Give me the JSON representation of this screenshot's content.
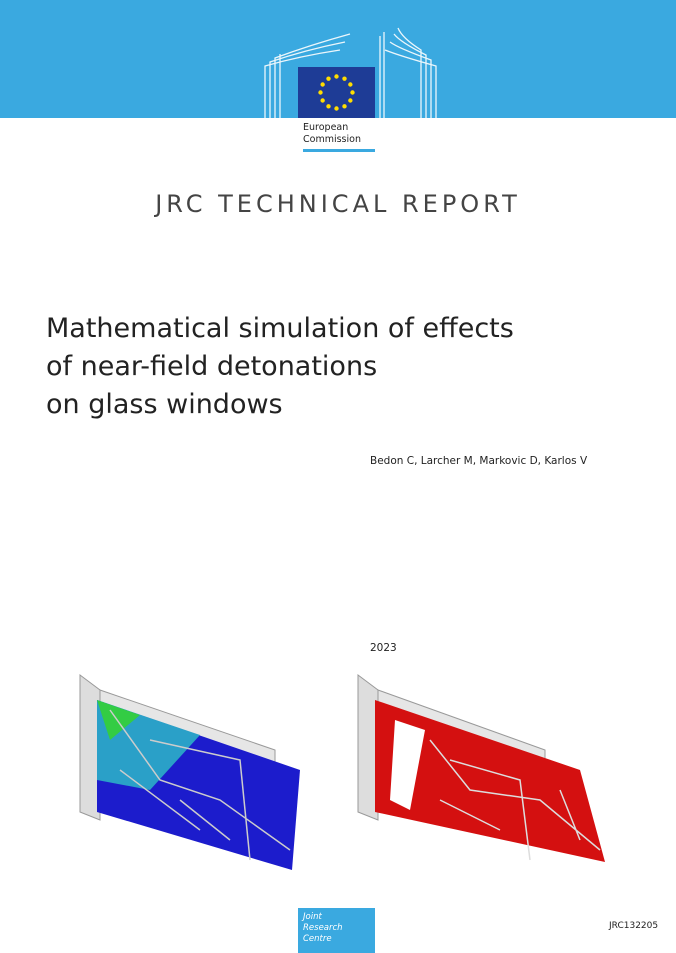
{
  "header": {
    "organization": [
      "European",
      "Commission"
    ]
  },
  "report_type": "JRC TECHNICAL REPORT",
  "title": [
    "Mathematical simulation of effects",
    "of near-field detonations",
    "on glass windows"
  ],
  "authors": "Bedon C, Larcher M, Markovic D, Karlos V",
  "year": "2023",
  "footer": {
    "logo": [
      "Joint",
      "Research",
      "Centre"
    ],
    "report_id": "JRC132205"
  }
}
